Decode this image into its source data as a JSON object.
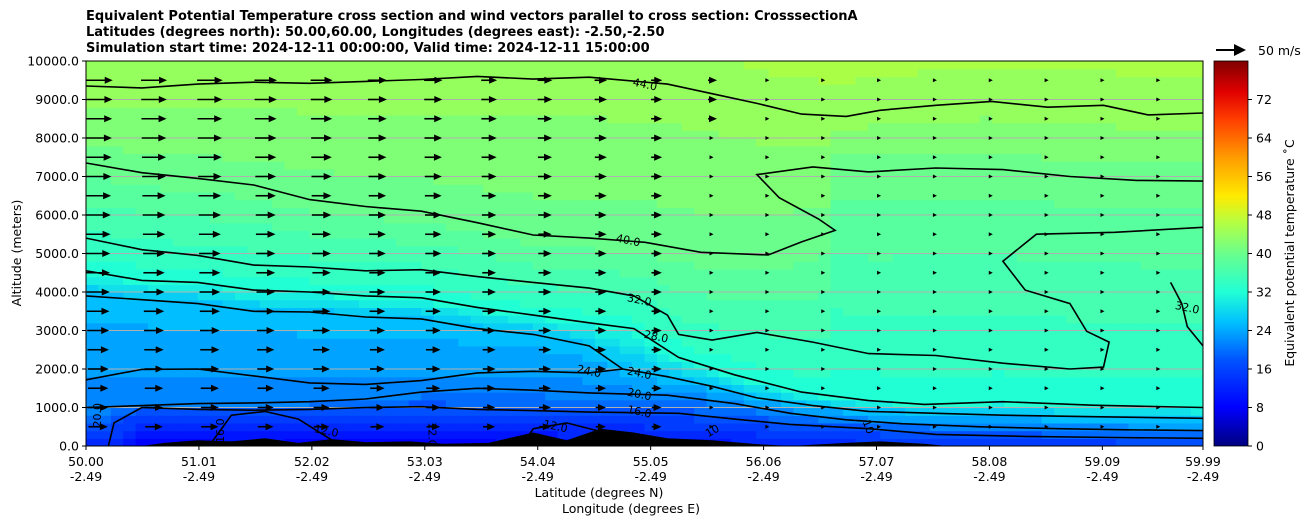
{
  "figure": {
    "title_lines": [
      "Equivalent Potential Temperature cross section and wind vectors parallel to cross section: CrosssectionA",
      "Latitudes (degrees north): 50.00,60.00, Longitudes (degrees east): -2.50,-2.50",
      "Simulation start time: 2024-12-11 00:00:00, Valid time: 2024-12-11 15:00:00"
    ]
  },
  "chart_data": {
    "type": "heatmap",
    "ylabel": "Altitude (meters)",
    "xlabel_lat": "Latitude (degrees N)",
    "xlabel_lon": "Longitude (degrees E)",
    "xlim": [
      50.0,
      59.99
    ],
    "ylim": [
      0,
      10000
    ],
    "x_ticks": [
      {
        "lat": "50.00",
        "lon": "-2.49"
      },
      {
        "lat": "51.01",
        "lon": "-2.49"
      },
      {
        "lat": "52.02",
        "lon": "-2.49"
      },
      {
        "lat": "53.03",
        "lon": "-2.49"
      },
      {
        "lat": "54.04",
        "lon": "-2.49"
      },
      {
        "lat": "55.05",
        "lon": "-2.49"
      },
      {
        "lat": "56.06",
        "lon": "-2.49"
      },
      {
        "lat": "57.07",
        "lon": "-2.49"
      },
      {
        "lat": "58.08",
        "lon": "-2.49"
      },
      {
        "lat": "59.09",
        "lon": "-2.49"
      },
      {
        "lat": "59.99",
        "lon": "-2.49"
      }
    ],
    "y_ticks": [
      "0.0",
      "1000.0",
      "2000.0",
      "3000.0",
      "4000.0",
      "5000.0",
      "6000.0",
      "7000.0",
      "8000.0",
      "9000.0",
      "10000.0"
    ],
    "grid": "horizontal",
    "colorbar": {
      "label": "Equivalent potential temperature ˚C",
      "min": 0,
      "max": 80,
      "ticks": [
        "0",
        "8",
        "16",
        "24",
        "32",
        "40",
        "48",
        "56",
        "64",
        "72"
      ]
    },
    "quiver_key": "50 m/s",
    "contours": [
      {
        "label": "44.0",
        "value": 44,
        "label_at": [
          55.0,
          9400
        ],
        "points": [
          [
            50.0,
            9350
          ],
          [
            50.5,
            9300
          ],
          [
            51.0,
            9400
          ],
          [
            51.5,
            9450
          ],
          [
            52.0,
            9420
          ],
          [
            52.5,
            9470
          ],
          [
            53.0,
            9520
          ],
          [
            53.5,
            9600
          ],
          [
            54.0,
            9530
          ],
          [
            54.5,
            9580
          ],
          [
            55.2,
            9400
          ],
          [
            55.6,
            9150
          ],
          [
            56.0,
            8900
          ],
          [
            56.4,
            8620
          ],
          [
            56.8,
            8560
          ],
          [
            57.1,
            8720
          ],
          [
            57.6,
            8850
          ],
          [
            58.1,
            8950
          ],
          [
            58.6,
            8800
          ],
          [
            59.1,
            8850
          ],
          [
            59.5,
            8600
          ],
          [
            59.99,
            8650
          ]
        ]
      },
      {
        "label": "40.0",
        "value": 40,
        "label_at": [
          54.85,
          5350
        ],
        "points": [
          [
            50.0,
            7350
          ],
          [
            50.5,
            7100
          ],
          [
            51.0,
            6950
          ],
          [
            51.5,
            6780
          ],
          [
            52.0,
            6400
          ],
          [
            52.5,
            6220
          ],
          [
            53.0,
            6100
          ],
          [
            53.5,
            5800
          ],
          [
            54.0,
            5480
          ],
          [
            54.5,
            5400
          ],
          [
            55.0,
            5290
          ],
          [
            55.5,
            5030
          ],
          [
            56.1,
            4960
          ],
          [
            56.4,
            5300
          ],
          [
            56.7,
            5600
          ],
          [
            56.55,
            5900
          ],
          [
            56.2,
            6450
          ],
          [
            56.0,
            7050
          ],
          [
            56.5,
            7250
          ],
          [
            57.0,
            7120
          ],
          [
            57.6,
            7220
          ],
          [
            58.2,
            7180
          ],
          [
            58.8,
            7000
          ],
          [
            59.4,
            6900
          ],
          [
            59.99,
            6880
          ]
        ]
      },
      {
        "label": "32.0",
        "value": 32,
        "label_at": [
          54.95,
          3800
        ],
        "points": [
          [
            50.0,
            5400
          ],
          [
            50.5,
            5100
          ],
          [
            51.0,
            4950
          ],
          [
            51.5,
            4700
          ],
          [
            52.0,
            4650
          ],
          [
            52.5,
            4550
          ],
          [
            53.0,
            4580
          ],
          [
            53.5,
            4400
          ],
          [
            54.0,
            4250
          ],
          [
            54.5,
            4100
          ],
          [
            54.9,
            3900
          ],
          [
            55.2,
            3400
          ],
          [
            55.3,
            2900
          ],
          [
            55.6,
            2750
          ],
          [
            56.0,
            2950
          ],
          [
            56.5,
            2700
          ],
          [
            57.0,
            2400
          ],
          [
            57.6,
            2350
          ],
          [
            58.2,
            2150
          ],
          [
            58.8,
            2000
          ],
          [
            59.1,
            2050
          ],
          [
            59.15,
            2700
          ],
          [
            58.95,
            2980
          ],
          [
            58.8,
            3700
          ],
          [
            58.4,
            4050
          ],
          [
            58.2,
            4800
          ],
          [
            58.5,
            5500
          ],
          [
            59.2,
            5550
          ],
          [
            59.99,
            5680
          ]
        ]
      },
      {
        "label": "32.0",
        "value": 32,
        "label_at": [
          59.85,
          3600
        ],
        "points": [
          [
            59.7,
            4250
          ],
          [
            59.8,
            3700
          ],
          [
            59.85,
            3100
          ],
          [
            59.99,
            2600
          ]
        ]
      },
      {
        "label": "28.0",
        "value": 28,
        "label_at": [
          55.1,
          2850
        ],
        "points": [
          [
            50.0,
            4550
          ],
          [
            50.5,
            4300
          ],
          [
            51.0,
            4250
          ],
          [
            51.5,
            4050
          ],
          [
            52.0,
            4000
          ],
          [
            52.5,
            3900
          ],
          [
            53.0,
            3850
          ],
          [
            53.5,
            3600
          ],
          [
            54.0,
            3400
          ],
          [
            54.5,
            3200
          ],
          [
            54.9,
            3050
          ],
          [
            55.3,
            2300
          ],
          [
            55.8,
            1850
          ],
          [
            56.4,
            1400
          ],
          [
            57.0,
            1180
          ],
          [
            57.5,
            1080
          ],
          [
            58.2,
            1150
          ],
          [
            59.0,
            1060
          ],
          [
            59.99,
            1000
          ]
        ]
      },
      {
        "label": "24.0",
        "value": 24,
        "label_at": [
          54.95,
          1900
        ],
        "points": [
          [
            50.0,
            3900
          ],
          [
            50.5,
            3800
          ],
          [
            51.0,
            3700
          ],
          [
            51.5,
            3500
          ],
          [
            52.0,
            3480
          ],
          [
            52.5,
            3350
          ],
          [
            53.0,
            3300
          ],
          [
            53.5,
            3050
          ],
          [
            54.0,
            2900
          ],
          [
            54.5,
            2600
          ],
          [
            54.8,
            2000
          ],
          [
            55.2,
            1800
          ],
          [
            55.6,
            1550
          ],
          [
            56.0,
            1250
          ],
          [
            56.5,
            1050
          ],
          [
            57.0,
            900
          ],
          [
            57.6,
            850
          ],
          [
            58.2,
            800
          ],
          [
            59.0,
            760
          ],
          [
            59.99,
            720
          ]
        ]
      },
      {
        "label": "24.0",
        "value": 24,
        "label_at": [
          54.5,
          1950
        ],
        "points": [
          [
            50.0,
            1720
          ],
          [
            50.5,
            1990
          ],
          [
            51.0,
            2000
          ],
          [
            51.5,
            1820
          ],
          [
            52.0,
            1640
          ],
          [
            52.5,
            1600
          ],
          [
            53.0,
            1700
          ],
          [
            53.5,
            1900
          ],
          [
            54.0,
            1940
          ],
          [
            54.5,
            1900
          ],
          [
            54.8,
            2000
          ]
        ]
      },
      {
        "label": "20.0",
        "value": 20,
        "label_at": [
          54.95,
          1350
        ],
        "points": [
          [
            50.0,
            1000
          ],
          [
            50.5,
            1050
          ],
          [
            51.0,
            1100
          ],
          [
            51.5,
            1120
          ],
          [
            52.0,
            1150
          ],
          [
            52.5,
            1220
          ],
          [
            53.0,
            1400
          ],
          [
            53.5,
            1500
          ],
          [
            54.0,
            1450
          ],
          [
            54.5,
            1380
          ],
          [
            55.2,
            1320
          ],
          [
            55.8,
            1100
          ],
          [
            56.3,
            850
          ],
          [
            56.8,
            680
          ],
          [
            57.3,
            580
          ],
          [
            58.0,
            500
          ],
          [
            58.7,
            450
          ],
          [
            59.3,
            420
          ],
          [
            59.99,
            400
          ]
        ]
      },
      {
        "label": "16.0",
        "value": 16,
        "label_at": [
          54.95,
          900
        ],
        "points": [
          [
            50.2,
            0
          ],
          [
            50.25,
            600
          ],
          [
            50.5,
            1000
          ],
          [
            51.0,
            950
          ],
          [
            51.5,
            930
          ],
          [
            52.0,
            950
          ],
          [
            52.5,
            1000
          ],
          [
            53.0,
            1020
          ],
          [
            53.5,
            950
          ],
          [
            54.0,
            920
          ],
          [
            54.5,
            880
          ],
          [
            55.3,
            850
          ],
          [
            55.8,
            700
          ],
          [
            56.3,
            560
          ],
          [
            57.0,
            450
          ],
          [
            57.6,
            300
          ],
          [
            58.4,
            250
          ],
          [
            59.2,
            220
          ],
          [
            59.99,
            200
          ]
        ]
      },
      {
        "label": "12.0",
        "value": 12,
        "label_at": [
          52.15,
          400
        ],
        "points": [
          [
            51.1,
            0
          ],
          [
            51.3,
            800
          ],
          [
            51.6,
            900
          ],
          [
            51.9,
            700
          ],
          [
            52.2,
            150
          ],
          [
            52.3,
            0
          ]
        ]
      },
      {
        "label": "12.0",
        "value": 12,
        "label_at": [
          54.2,
          520
        ],
        "points": [
          [
            53.9,
            0
          ],
          [
            54.0,
            450
          ],
          [
            54.3,
            600
          ],
          [
            54.7,
            300
          ],
          [
            54.9,
            0
          ]
        ]
      }
    ],
    "contour_labels_extra": [
      {
        "label": "20.0",
        "at": [
          50.1,
          800
        ],
        "rotate": -90
      },
      {
        "label": "16.0",
        "at": [
          51.2,
          400
        ],
        "rotate": -90
      },
      {
        "label": "12.0",
        "at": [
          53.1,
          300
        ],
        "rotate": 90
      },
      {
        "label": "10",
        "at": [
          55.6,
          400
        ],
        "rotate": -30
      },
      {
        "label": "10",
        "at": [
          57.0,
          500
        ],
        "rotate": 70
      }
    ],
    "terrain": [
      [
        50.0,
        0
      ],
      [
        50.5,
        0
      ],
      [
        50.7,
        80
      ],
      [
        51.0,
        150
      ],
      [
        51.3,
        120
      ],
      [
        51.6,
        200
      ],
      [
        51.9,
        80
      ],
      [
        52.2,
        180
      ],
      [
        52.5,
        100
      ],
      [
        52.9,
        120
      ],
      [
        53.2,
        60
      ],
      [
        53.6,
        80
      ],
      [
        54.0,
        350
      ],
      [
        54.3,
        150
      ],
      [
        54.6,
        450
      ],
      [
        54.9,
        350
      ],
      [
        55.2,
        200
      ],
      [
        55.6,
        150
      ],
      [
        56.0,
        50
      ],
      [
        56.3,
        0
      ],
      [
        56.8,
        80
      ],
      [
        57.1,
        120
      ],
      [
        57.5,
        60
      ],
      [
        57.7,
        0
      ]
    ]
  }
}
